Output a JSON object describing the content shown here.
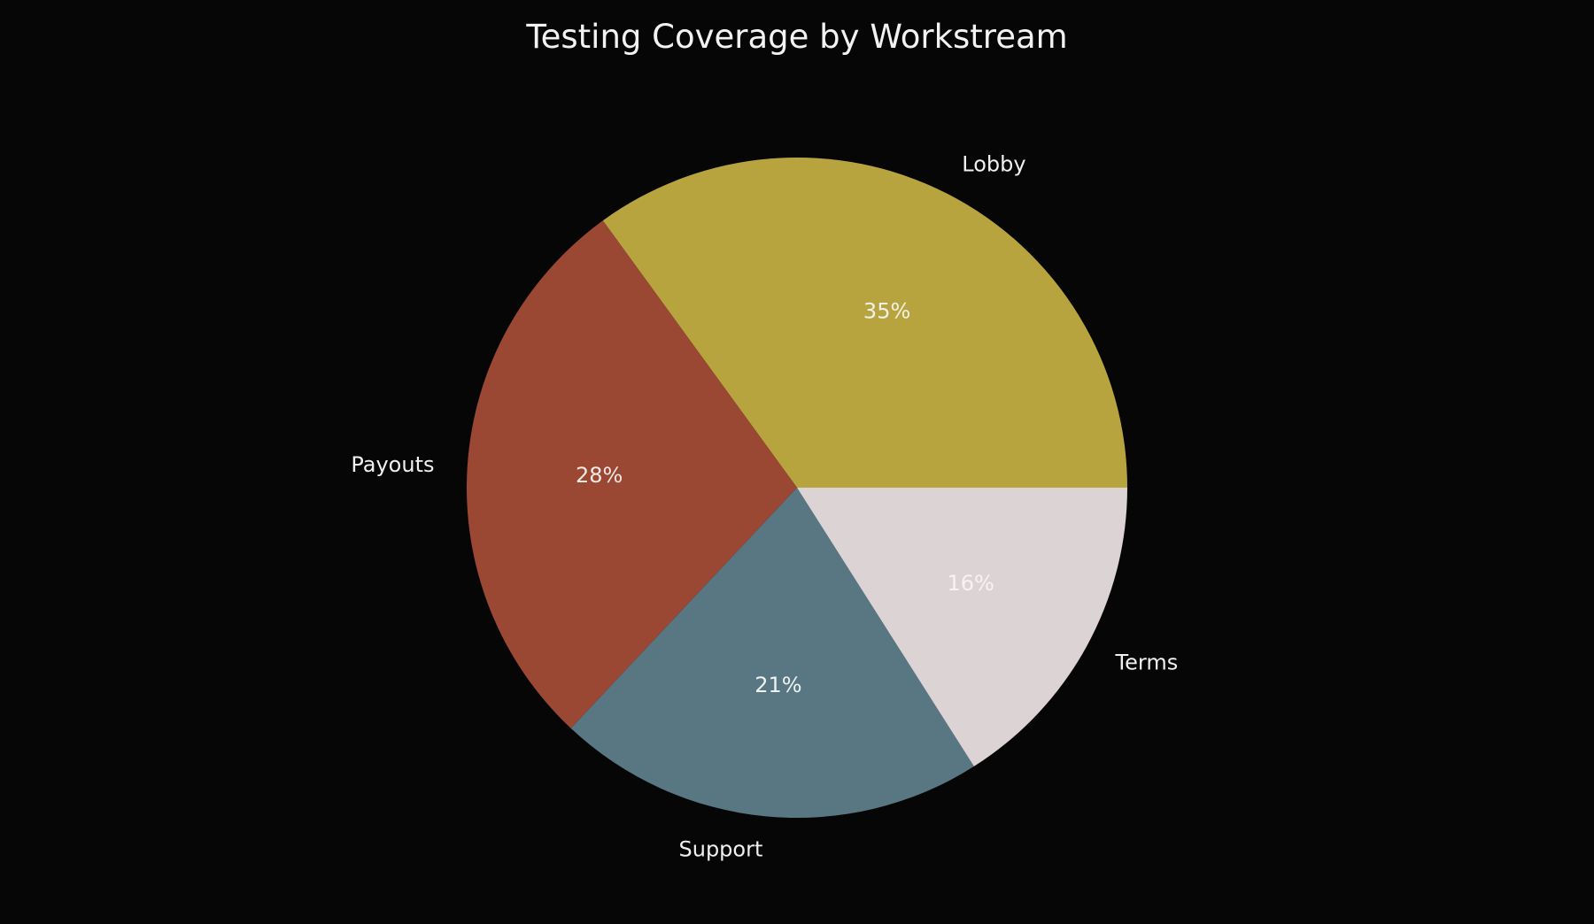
{
  "chart_data": {
    "type": "pie",
    "title": "Testing Coverage by Workstream",
    "start_angle_deg": 0,
    "direction": "counterclockwise",
    "slices": [
      {
        "label": "Lobby",
        "value": 35,
        "pct_label": "35%",
        "color": "#b8a43e",
        "pct_color": "#f2f0e6"
      },
      {
        "label": "Payouts",
        "value": 28,
        "pct_label": "28%",
        "color": "#9a4733",
        "pct_color": "#f2e8e4"
      },
      {
        "label": "Support",
        "value": 21,
        "pct_label": "21%",
        "color": "#587782",
        "pct_color": "#eef2f3"
      },
      {
        "label": "Terms",
        "value": 16,
        "pct_label": "16%",
        "color": "#dcd3d4",
        "pct_color": "#f7f3f3"
      }
    ]
  }
}
